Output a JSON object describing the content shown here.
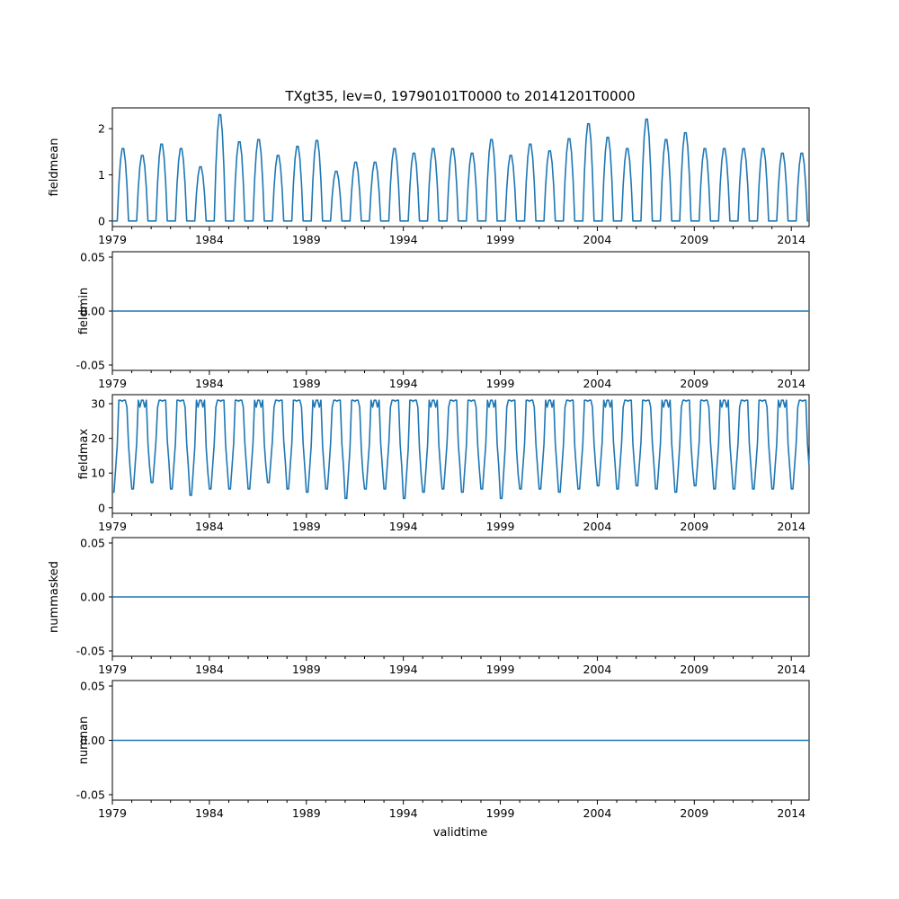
{
  "chart_data": {
    "type": "line",
    "title": "TXgt35, lev=0, 19790101T0000 to 20141201T0000",
    "xlabel": "validtime",
    "x_start": "1979-01",
    "x_end": "2014-12",
    "x_frequency": "monthly",
    "x_ticks": [
      "1979",
      "1984",
      "1989",
      "1994",
      "1999",
      "2004",
      "2009",
      "2014"
    ],
    "color": "#1f77b4",
    "grid": false,
    "panels": [
      {
        "ylabel": "fieldmean",
        "ylim": [
          -0.12,
          2.45
        ],
        "yticks": [
          "0",
          "1",
          "2"
        ],
        "yticks_values": [
          0,
          1,
          2
        ],
        "peaks": [
          1.6,
          1.45,
          1.7,
          1.6,
          1.2,
          2.35,
          1.75,
          1.8,
          1.45,
          1.65,
          1.78,
          1.1,
          1.3,
          1.3,
          1.6,
          1.5,
          1.6,
          1.6,
          1.5,
          1.8,
          1.45,
          1.7,
          1.55,
          1.82,
          2.15,
          1.85,
          1.6,
          2.25,
          1.8,
          1.95,
          1.6,
          1.6,
          1.6,
          1.6,
          1.5,
          1.5
        ],
        "peak_fill": 0.5,
        "peak_width": 5,
        "months": 432,
        "x_from": "1979-01",
        "x_to": "2014-12"
      },
      {
        "ylabel": "fieldmin",
        "ylim": [
          -0.055,
          0.055
        ],
        "yticks": [
          "0.05",
          "0.00",
          "-0.05"
        ],
        "yticks_values": [
          0.05,
          0.0,
          -0.05
        ],
        "constant": 0
      },
      {
        "ylabel": "fieldmax",
        "ylim": [
          -1.6,
          32.6
        ],
        "yticks": [
          "30",
          "20",
          "10",
          "0"
        ],
        "yticks_values": [
          30,
          20,
          10,
          0
        ],
        "peaks": [
          31,
          31,
          31,
          31,
          31,
          31,
          31,
          31,
          31,
          31,
          31,
          31,
          31,
          31,
          31,
          31,
          31,
          31,
          31,
          31,
          31,
          31,
          31,
          31,
          31,
          31,
          31,
          31,
          31,
          31,
          31,
          31,
          31,
          31,
          31,
          31
        ],
        "troughs": [
          2,
          3,
          5,
          3,
          1,
          3,
          3,
          3,
          5,
          3,
          2,
          3,
          0,
          3,
          3,
          0,
          2,
          3,
          2,
          3,
          0,
          3,
          3,
          2,
          3,
          4,
          3,
          4,
          3,
          2,
          4,
          3,
          3,
          3,
          3,
          3
        ],
        "peak_fill": 26,
        "peak_width": 7,
        "months": 432,
        "x_from": "1979-01",
        "x_to": "2014-12"
      },
      {
        "ylabel": "nummasked",
        "ylim": [
          -0.055,
          0.055
        ],
        "yticks": [
          "0.05",
          "0.00",
          "-0.05"
        ],
        "yticks_values": [
          0.05,
          0.0,
          -0.05
        ],
        "constant": 0
      },
      {
        "ylabel": "numnan",
        "ylim": [
          -0.055,
          0.055
        ],
        "yticks": [
          "0.05",
          "0.00",
          "-0.05"
        ],
        "yticks_values": [
          0.05,
          0.0,
          -0.05
        ],
        "constant": 0
      }
    ]
  }
}
